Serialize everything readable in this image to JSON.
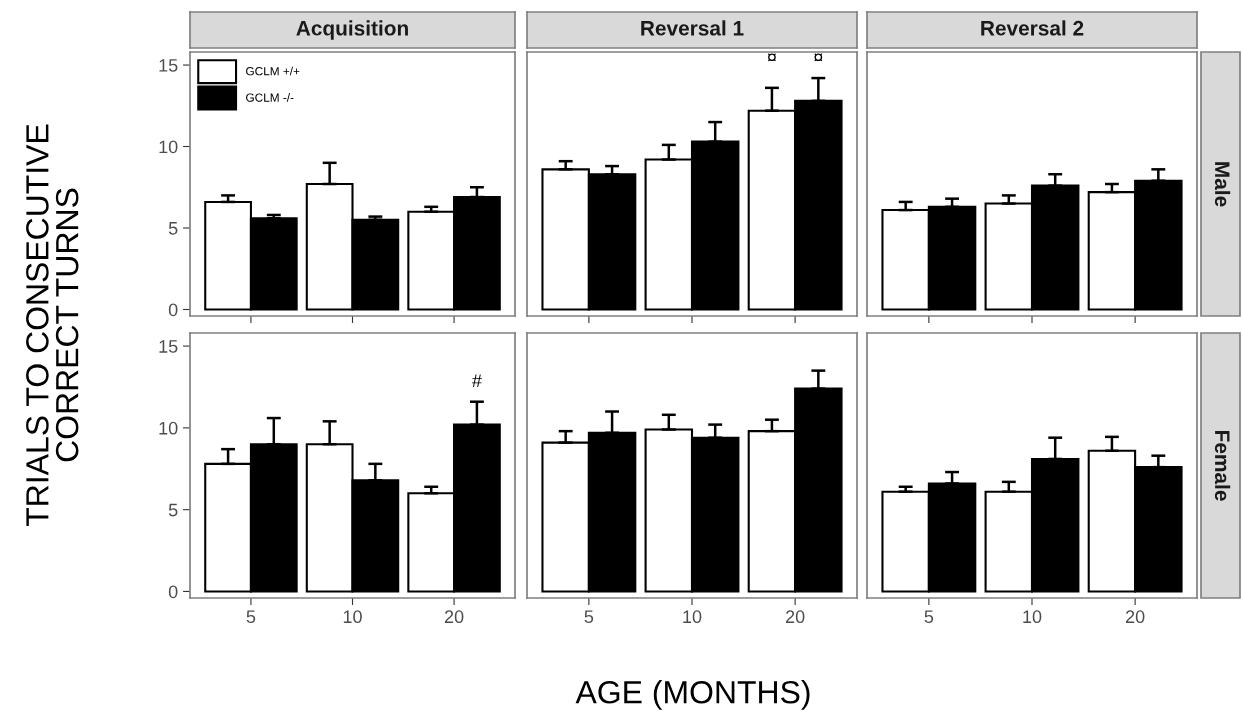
{
  "chart_data": [
    {
      "type": "bar",
      "title": "Acquisition",
      "ylabel": "TRIALS TO CONSECUTIVE\nCORRECT TURNS",
      "categories": [
        "5",
        "10",
        "20"
      ],
      "ylim": [
        -0.4,
        15.8
      ],
      "yticks": [
        0,
        5,
        10,
        15
      ],
      "tick_labels": "y",
      "legend": "top left",
      "series": [
        {
          "name": "GCLM +/+",
          "color": "#ffffff",
          "values": [
            6.6,
            7.7,
            6.0
          ],
          "errors": [
            [
              6.6,
              7.0
            ],
            [
              7.7,
              9.0
            ],
            [
              6.0,
              6.3
            ]
          ]
        },
        {
          "name": "GCLM -/-",
          "color": "#000000",
          "values": [
            5.6,
            5.5,
            6.9
          ],
          "errors": [
            [
              5.6,
              5.8
            ],
            [
              5.5,
              5.7
            ],
            [
              6.9,
              7.5
            ]
          ]
        }
      ]
    },
    {
      "type": "bar",
      "title": "Reversal 1",
      "categories": [
        "5",
        "10",
        "20"
      ],
      "ylim": [
        -0.4,
        15.8
      ],
      "yticks": [
        0,
        5,
        10,
        15
      ],
      "tick_labels": false,
      "annotations": [
        "¤",
        "¤"
      ],
      "series": [
        {
          "color": "#ffffff",
          "values": [
            8.6,
            9.2,
            12.2
          ],
          "errors": [
            [
              8.6,
              9.1
            ],
            [
              9.2,
              10.1
            ],
            [
              12.2,
              13.6
            ]
          ]
        },
        {
          "color": "#000000",
          "values": [
            8.3,
            10.3,
            12.8
          ],
          "errors": [
            [
              8.3,
              8.8
            ],
            [
              10.3,
              11.5
            ],
            [
              12.8,
              14.2
            ]
          ]
        }
      ]
    },
    {
      "type": "bar",
      "title": "Reversal 2",
      "categories": [
        "5",
        "10",
        "20"
      ],
      "ylim": [
        -0.4,
        15.8
      ],
      "yticks": [
        0,
        5,
        10,
        15
      ],
      "tick_labels": false,
      "y2label": "Male",
      "series": [
        {
          "color": "#ffffff",
          "values": [
            6.1,
            6.5,
            7.2
          ],
          "errors": [
            [
              6.1,
              6.6
            ],
            [
              6.5,
              7.0
            ],
            [
              7.2,
              7.7
            ]
          ]
        },
        {
          "color": "#000000",
          "values": [
            6.3,
            7.6,
            7.9
          ],
          "errors": [
            [
              6.3,
              6.8
            ],
            [
              7.6,
              8.3
            ],
            [
              7.9,
              8.6
            ]
          ]
        }
      ]
    },
    {
      "type": "bar",
      "categories": [
        "5",
        "10",
        "20"
      ],
      "ylim": [
        -0.4,
        15.8
      ],
      "yticks": [
        0,
        5,
        10,
        15
      ],
      "annotations": [
        "#"
      ],
      "series": [
        {
          "color": "#ffffff",
          "values": [
            7.8,
            9.0,
            6.0
          ],
          "errors": [
            [
              7.8,
              8.7
            ],
            [
              9.0,
              10.4
            ],
            [
              6.0,
              6.4
            ]
          ]
        },
        {
          "color": "#000000",
          "values": [
            9.0,
            6.8,
            10.2
          ],
          "errors": [
            [
              9.0,
              10.6
            ],
            [
              6.8,
              7.8
            ],
            [
              10.2,
              11.6
            ]
          ]
        }
      ]
    },
    {
      "type": "bar",
      "xlabel": "AGE (MONTHS)",
      "categories": [
        "5",
        "10",
        "20"
      ],
      "ylim": [
        -0.4,
        15.8
      ],
      "yticks": [
        0,
        5,
        10,
        15
      ],
      "tick_labels": "x",
      "series": [
        {
          "color": "#ffffff",
          "values": [
            9.1,
            9.9,
            9.8
          ],
          "errors": [
            [
              9.1,
              9.8
            ],
            [
              9.9,
              10.8
            ],
            [
              9.8,
              10.5
            ]
          ]
        },
        {
          "color": "#000000",
          "values": [
            9.7,
            9.4,
            12.4
          ],
          "errors": [
            [
              9.7,
              11.0
            ],
            [
              9.4,
              10.2
            ],
            [
              12.4,
              13.5
            ]
          ]
        }
      ]
    },
    {
      "type": "bar",
      "categories": [
        "5",
        "10",
        "20"
      ],
      "ylim": [
        -0.4,
        15.8
      ],
      "yticks": [
        0,
        5,
        10,
        15
      ],
      "tick_labels": "x",
      "y2label": "Female",
      "series": [
        {
          "color": "#ffffff",
          "values": [
            6.1,
            6.1,
            8.6
          ],
          "errors": [
            [
              6.1,
              6.4
            ],
            [
              6.1,
              6.7
            ],
            [
              8.6,
              9.45
            ]
          ]
        },
        {
          "color": "#000000",
          "values": [
            6.6,
            8.1,
            7.6
          ],
          "errors": [
            [
              6.6,
              7.3
            ],
            [
              8.1,
              9.4
            ],
            [
              7.6,
              8.3
            ]
          ]
        }
      ]
    }
  ]
}
